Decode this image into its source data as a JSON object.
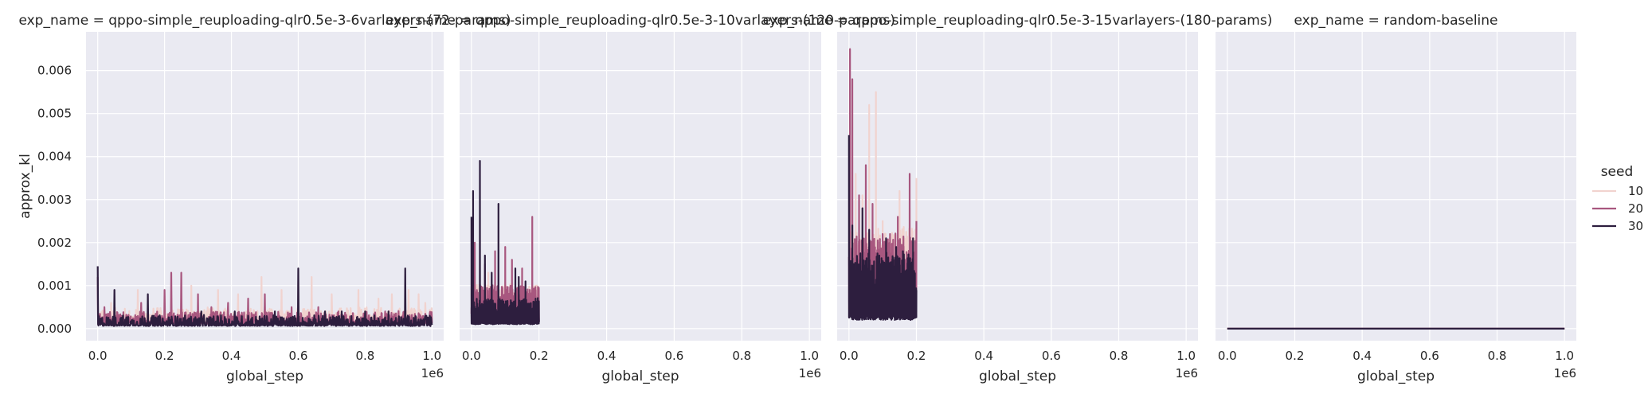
{
  "chart_data": [
    {
      "type": "line",
      "title": "exp_name = qppo-simple_reuploading-qlr0.5e-3-6varlayers-(72-params)",
      "xlabel": "global_step",
      "ylabel": "approx_kl",
      "xlim": [
        -0.035,
        1.035
      ],
      "ylim": [
        -0.00028,
        0.0069
      ],
      "x_offset_label": "1e6",
      "xticks": [
        0.0,
        0.2,
        0.4,
        0.6,
        0.8,
        1.0
      ],
      "xtick_labels": [
        "0.0",
        "0.2",
        "0.4",
        "0.6",
        "0.8",
        "1.0"
      ],
      "yticks": [
        0.0,
        0.001,
        0.002,
        0.003,
        0.004,
        0.005,
        0.006
      ],
      "ytick_labels": [
        "0.000",
        "0.001",
        "0.002",
        "0.003",
        "0.004",
        "0.005",
        "0.006"
      ],
      "grid": true,
      "series": [
        {
          "name": "10",
          "color": "#f1d3cf",
          "x_range": [
            0,
            1.0
          ],
          "baseline": 0.00012,
          "noise": 0.00022,
          "peaks": [
            [
              0.0,
              0.0009
            ],
            [
              0.04,
              0.0006
            ],
            [
              0.12,
              0.0009
            ],
            [
              0.2,
              0.0008
            ],
            [
              0.28,
              0.001
            ],
            [
              0.36,
              0.0009
            ],
            [
              0.42,
              0.0008
            ],
            [
              0.49,
              0.0012
            ],
            [
              0.55,
              0.0009
            ],
            [
              0.6,
              0.0011
            ],
            [
              0.64,
              0.0012
            ],
            [
              0.7,
              0.0008
            ],
            [
              0.78,
              0.0009
            ],
            [
              0.84,
              0.0007
            ],
            [
              0.88,
              0.0008
            ],
            [
              0.93,
              0.0009
            ],
            [
              0.96,
              0.0008
            ],
            [
              0.98,
              0.0006
            ]
          ]
        },
        {
          "name": "20",
          "color": "#a8577f",
          "x_range": [
            0,
            1.0
          ],
          "baseline": 0.0001,
          "noise": 0.00018,
          "peaks": [
            [
              0.0,
              0.0012
            ],
            [
              0.02,
              0.0005
            ],
            [
              0.13,
              0.0006
            ],
            [
              0.2,
              0.0009
            ],
            [
              0.22,
              0.0013
            ],
            [
              0.25,
              0.0013
            ],
            [
              0.3,
              0.0008
            ],
            [
              0.34,
              0.0005
            ],
            [
              0.39,
              0.0006
            ],
            [
              0.45,
              0.0007
            ],
            [
              0.5,
              0.0008
            ],
            [
              0.58,
              0.0005
            ],
            [
              0.66,
              0.0005
            ],
            [
              0.72,
              0.0004
            ],
            [
              0.86,
              0.0004
            ],
            [
              0.95,
              0.0003
            ]
          ]
        },
        {
          "name": "30",
          "color": "#2d1e3e",
          "x_range": [
            0,
            1.0
          ],
          "baseline": 6e-05,
          "noise": 0.00015,
          "peaks": [
            [
              0.0,
              0.00145
            ],
            [
              0.05,
              0.0009
            ],
            [
              0.15,
              0.0008
            ],
            [
              0.31,
              0.0004
            ],
            [
              0.41,
              0.0004
            ],
            [
              0.45,
              0.0003
            ],
            [
              0.53,
              0.0004
            ],
            [
              0.6,
              0.0014
            ],
            [
              0.68,
              0.0004
            ],
            [
              0.73,
              0.0004
            ],
            [
              0.8,
              0.0004
            ],
            [
              0.87,
              0.0004
            ],
            [
              0.92,
              0.0014
            ],
            [
              0.98,
              0.0003
            ]
          ]
        }
      ]
    },
    {
      "type": "line",
      "title": "exp_name = qppo-simple_reuploading-qlr0.5e-3-10varlayers-(120-params)",
      "xlabel": "global_step",
      "ylabel": "",
      "xlim": [
        -0.035,
        1.035
      ],
      "ylim": [
        -0.00028,
        0.0069
      ],
      "x_offset_label": "1e6",
      "xticks": [
        0.0,
        0.2,
        0.4,
        0.6,
        0.8,
        1.0
      ],
      "xtick_labels": [
        "0.0",
        "0.2",
        "0.4",
        "0.6",
        "0.8",
        "1.0"
      ],
      "yticks": [
        0.0,
        0.001,
        0.002,
        0.003,
        0.004,
        0.005,
        0.006
      ],
      "ytick_labels": [],
      "grid": true,
      "series": [
        {
          "name": "10",
          "color": "#f1d3cf",
          "x_range": [
            0,
            0.2
          ],
          "baseline": 0.0002,
          "noise": 0.0005,
          "peaks": [
            [
              0.01,
              0.0016
            ],
            [
              0.05,
              0.0013
            ],
            [
              0.1,
              0.0011
            ],
            [
              0.15,
              0.0014
            ],
            [
              0.19,
              0.001
            ]
          ]
        },
        {
          "name": "20",
          "color": "#a8577f",
          "x_range": [
            0,
            0.2
          ],
          "baseline": 0.00015,
          "noise": 0.0005,
          "peaks": [
            [
              0.01,
              0.002
            ],
            [
              0.04,
              0.0015
            ],
            [
              0.07,
              0.0018
            ],
            [
              0.1,
              0.0019
            ],
            [
              0.12,
              0.0016
            ],
            [
              0.15,
              0.0014
            ],
            [
              0.18,
              0.0026
            ],
            [
              0.19,
              0.0009
            ]
          ]
        },
        {
          "name": "30",
          "color": "#2d1e3e",
          "x_range": [
            0,
            0.2
          ],
          "baseline": 0.0001,
          "noise": 0.00035,
          "peaks": [
            [
              0.0,
              0.0026
            ],
            [
              0.005,
              0.0032
            ],
            [
              0.025,
              0.0039
            ],
            [
              0.04,
              0.0017
            ],
            [
              0.06,
              0.0013
            ],
            [
              0.08,
              0.0029
            ],
            [
              0.13,
              0.0014
            ],
            [
              0.14,
              0.0012
            ],
            [
              0.16,
              0.0011
            ],
            [
              0.19,
              0.0007
            ]
          ]
        }
      ]
    },
    {
      "type": "line",
      "title": "exp_name = qppo-simple_reuploading-qlr0.5e-3-15varlayers-(180-params)",
      "xlabel": "global_step",
      "ylabel": "",
      "xlim": [
        -0.035,
        1.035
      ],
      "ylim": [
        -0.00028,
        0.0069
      ],
      "x_offset_label": "1e6",
      "xticks": [
        0.0,
        0.2,
        0.4,
        0.6,
        0.8,
        1.0
      ],
      "xtick_labels": [
        "0.0",
        "0.2",
        "0.4",
        "0.6",
        "0.8",
        "1.0"
      ],
      "yticks": [
        0.0,
        0.001,
        0.002,
        0.003,
        0.004,
        0.005,
        0.006
      ],
      "ytick_labels": [],
      "grid": true,
      "series": [
        {
          "name": "10",
          "color": "#f1d3cf",
          "x_range": [
            0,
            0.2
          ],
          "baseline": 0.0003,
          "noise": 0.0012,
          "peaks": [
            [
              0.02,
              0.0036
            ],
            [
              0.04,
              0.0031
            ],
            [
              0.06,
              0.0052
            ],
            [
              0.08,
              0.0055
            ],
            [
              0.1,
              0.0025
            ],
            [
              0.13,
              0.0021
            ],
            [
              0.15,
              0.0032
            ],
            [
              0.18,
              0.0028
            ],
            [
              0.2,
              0.0035
            ]
          ]
        },
        {
          "name": "20",
          "color": "#a8577f",
          "x_range": [
            0,
            0.2
          ],
          "baseline": 0.0003,
          "noise": 0.0011,
          "peaks": [
            [
              0.003,
              0.0065
            ],
            [
              0.01,
              0.0058
            ],
            [
              0.03,
              0.0031
            ],
            [
              0.05,
              0.0038
            ],
            [
              0.07,
              0.0029
            ],
            [
              0.1,
              0.0022
            ],
            [
              0.12,
              0.0019
            ],
            [
              0.145,
              0.0026
            ],
            [
              0.18,
              0.0036
            ],
            [
              0.2,
              0.0025
            ]
          ]
        },
        {
          "name": "30",
          "color": "#2d1e3e",
          "x_range": [
            0,
            0.2
          ],
          "baseline": 0.0002,
          "noise": 0.0009,
          "peaks": [
            [
              0.0,
              0.0045
            ],
            [
              0.01,
              0.0024
            ],
            [
              0.04,
              0.0028
            ],
            [
              0.06,
              0.0023
            ],
            [
              0.09,
              0.0017
            ],
            [
              0.11,
              0.0021
            ],
            [
              0.14,
              0.0019
            ],
            [
              0.16,
              0.0018
            ],
            [
              0.19,
              0.0021
            ]
          ]
        }
      ]
    },
    {
      "type": "line",
      "title": "exp_name = random-baseline",
      "xlabel": "global_step",
      "ylabel": "",
      "xlim": [
        -0.035,
        1.035
      ],
      "ylim": [
        -0.00028,
        0.0069
      ],
      "x_offset_label": "1e6",
      "xticks": [
        0.0,
        0.2,
        0.4,
        0.6,
        0.8,
        1.0
      ],
      "xtick_labels": [
        "0.0",
        "0.2",
        "0.4",
        "0.6",
        "0.8",
        "1.0"
      ],
      "yticks": [
        0.0,
        0.001,
        0.002,
        0.003,
        0.004,
        0.005,
        0.006
      ],
      "ytick_labels": [],
      "grid": true,
      "series": [
        {
          "name": "10",
          "color": "#f1d3cf",
          "x_range": [
            0,
            1.0
          ],
          "baseline": 0.0,
          "noise": 0.0,
          "peaks": []
        },
        {
          "name": "20",
          "color": "#a8577f",
          "x_range": [
            0,
            1.0
          ],
          "baseline": 0.0,
          "noise": 0.0,
          "peaks": []
        },
        {
          "name": "30",
          "color": "#2d1e3e",
          "x_range": [
            0,
            1.0
          ],
          "baseline": 0.0,
          "noise": 0.0,
          "peaks": []
        }
      ]
    }
  ],
  "legend": {
    "title": "seed",
    "placement": "right",
    "entries": [
      {
        "label": "10",
        "color": "#f1d3cf"
      },
      {
        "label": "20",
        "color": "#a8577f"
      },
      {
        "label": "30",
        "color": "#2d1e3e"
      }
    ]
  },
  "colors": {
    "axes_background": "#eaeaf2",
    "grid": "#ffffff",
    "text": "#262626"
  }
}
